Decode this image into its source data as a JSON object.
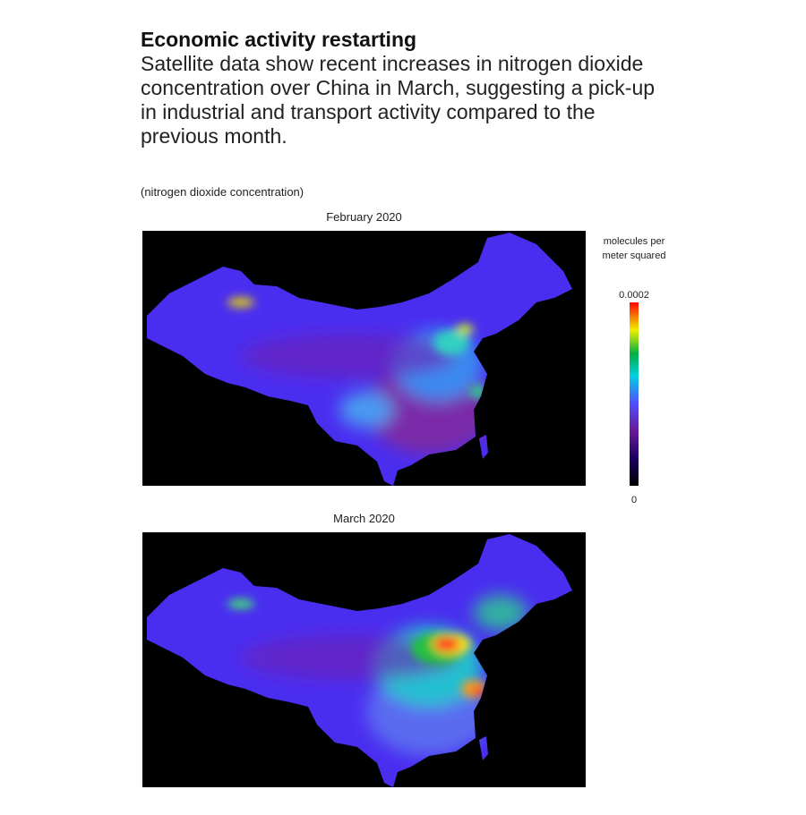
{
  "header": {
    "title": "Economic activity restarting",
    "subtitle": "Satellite data show recent increases in nitrogen dioxide concentration over China in March, suggesting a pick-up in industrial and transport activity compared to the previous month."
  },
  "note": "(nitrogen dioxide concentration)",
  "panels": [
    {
      "title": "February 2020"
    },
    {
      "title": "March 2020"
    }
  ],
  "colorbar": {
    "label": "molecules per meter squared",
    "min": 0,
    "max": 0.0002
  }
}
